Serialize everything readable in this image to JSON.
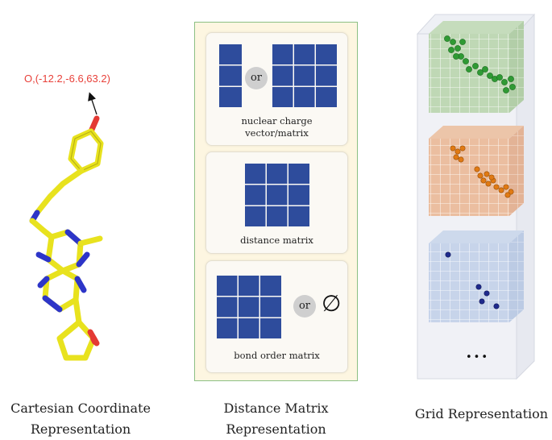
{
  "molecule": {
    "atom_annotation": "O,(-12.2,-6.6,63.2)",
    "caption_line1": "Cartesian Coordinate",
    "caption_line2": "Representation"
  },
  "distance_panel": {
    "nuclear_label_line1": "nuclear charge",
    "nuclear_label_line2": "vector/matrix",
    "or_label_1": "or",
    "distance_label": "distance matrix",
    "bond_label": "bond order matrix",
    "or_label_2": "or",
    "empty_symbol": "∅",
    "caption_line1": "Distance Matrix",
    "caption_line2": "Representation"
  },
  "grid_panel": {
    "ellipsis": "•••",
    "caption": "Grid Representation"
  },
  "colors": {
    "carbon": "#e8e21e",
    "nitrogen": "#2d35c8",
    "oxygen": "#e43a34",
    "matrix_blue": "#2e4c9c",
    "panel_border": "#8cc084",
    "panel_bg": "#fdf6e1",
    "green_atoms": "#2f9a34",
    "orange_atoms": "#e07a14",
    "blue_atoms": "#1f2a8c"
  }
}
